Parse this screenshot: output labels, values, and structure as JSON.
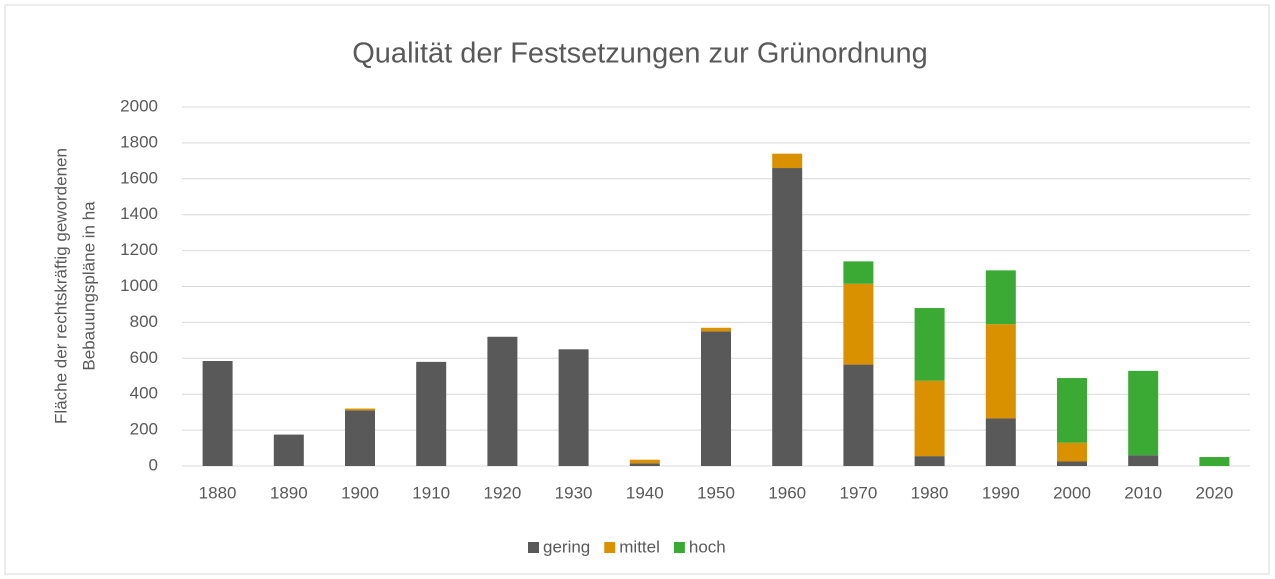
{
  "chart_data": {
    "type": "stacked_bar",
    "title": "Qualität der Festsetzungen zur Grünordnung",
    "y_label": [
      "Fläche der rechtskräftig gewordenen",
      "Bebauungspläne in ha"
    ],
    "categories": [
      "1880",
      "1890",
      "1900",
      "1910",
      "1920",
      "1930",
      "1940",
      "1950",
      "1960",
      "1970",
      "1980",
      "1990",
      "2000",
      "2010",
      "2020"
    ],
    "series": [
      {
        "name": "gering",
        "color": "#595959",
        "values": [
          585,
          175,
          310,
          580,
          720,
          650,
          15,
          750,
          1660,
          565,
          55,
          265,
          25,
          60,
          0
        ]
      },
      {
        "name": "mittel",
        "color": "#d99100",
        "values": [
          0,
          0,
          10,
          0,
          0,
          0,
          20,
          20,
          80,
          450,
          420,
          525,
          105,
          0,
          0
        ]
      },
      {
        "name": "hoch",
        "color": "#3aaa35",
        "values": [
          0,
          0,
          0,
          0,
          0,
          0,
          0,
          0,
          0,
          125,
          405,
          300,
          360,
          470,
          50
        ]
      }
    ],
    "ylim": [
      0,
      2000
    ],
    "yticks": [
      0,
      200,
      400,
      600,
      800,
      1000,
      1200,
      1400,
      1600,
      1800,
      2000
    ],
    "grid": true,
    "legend": "bottom"
  }
}
